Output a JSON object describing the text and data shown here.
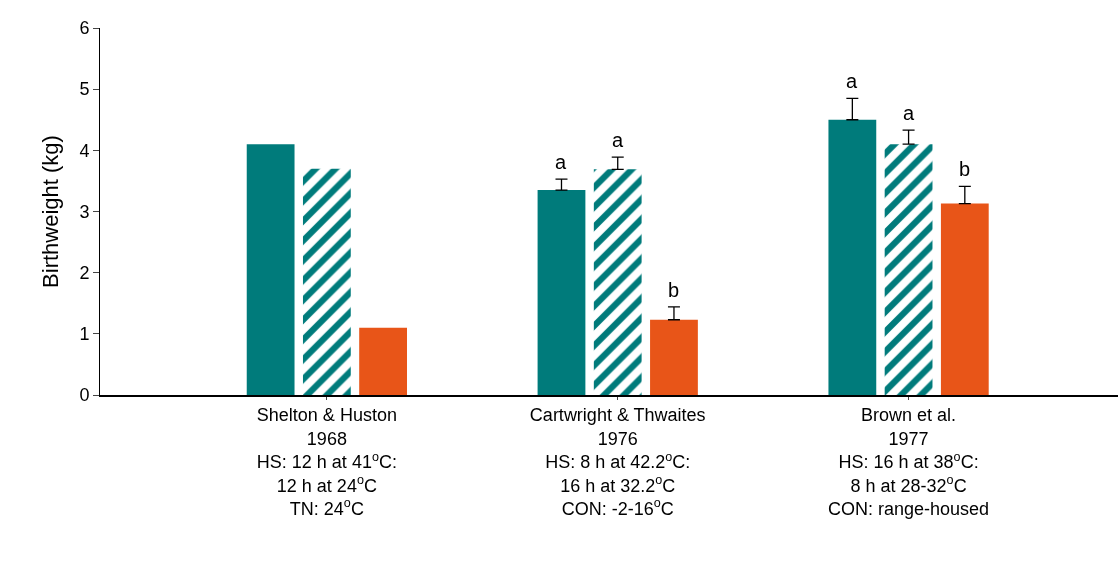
{
  "chart_data": {
    "type": "bar",
    "ylabel": "Birthweight (kg)",
    "categories": [
      "Shelton & Huston\n1968\nHS: 12 h at 41$^{o}$C:\n12 h at 24$^{o}$C\nTN: 24$^{o}$C",
      "Cartwright & Thwaites\n1976\nHS: 8 h at 42.2$^{o}$C:\n16 h at 32.2$^{o}$C\nCON: -2-16$^{o}$C",
      "Brown et al.\n1977\nHS: 16 h at 38$^{o}$C:\n8 h at 28-32$^{o}$C\nCON: range-housed"
    ],
    "series": [
      {
        "color": "#007b7b",
        "values": [
          4.1,
          3.35,
          4.5
        ],
        "errors": [
          null,
          [
            3.35,
            3.53
          ],
          [
            4.5,
            4.85
          ]
        ],
        "value_labels": [
          null,
          "a",
          "a"
        ]
      },
      {
        "color": "#007b7b",
        "values": [
          3.7,
          3.69,
          4.1
        ],
        "errors": [
          null,
          [
            3.69,
            3.89
          ],
          [
            4.1,
            4.33
          ]
        ],
        "value_labels": [
          null,
          "a",
          "a"
        ]
      },
      {
        "color": "#e85518",
        "values": [
          1.1,
          1.23,
          3.13
        ],
        "errors": [
          null,
          [
            1.23,
            1.44
          ],
          [
            3.13,
            3.41
          ]
        ],
        "value_labels": [
          null,
          "b",
          "b"
        ]
      }
    ],
    "ylim": [
      0,
      6
    ],
    "yticks": [
      0,
      1,
      2,
      3,
      4,
      5,
      6
    ]
  }
}
